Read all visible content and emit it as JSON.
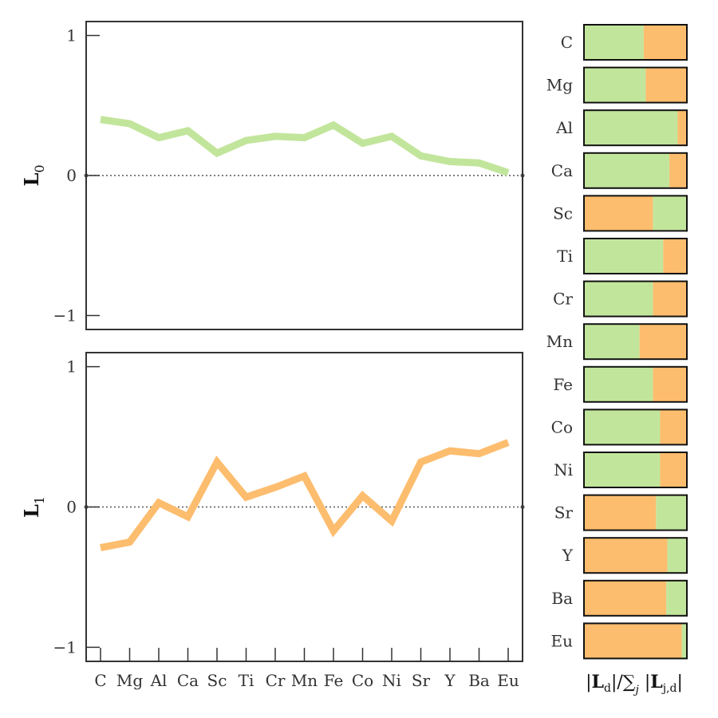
{
  "chart_data": [
    {
      "type": "line",
      "panel": "top",
      "ylabel_main": "L",
      "ylabel_sub": "0",
      "ylim": [
        -1.1,
        1.1
      ],
      "yticks": [
        1,
        0,
        -1
      ],
      "ytick_labels": [
        "1",
        "0",
        "−1"
      ],
      "categories": [
        "C",
        "Mg",
        "Al",
        "Ca",
        "Sc",
        "Ti",
        "Cr",
        "Mn",
        "Fe",
        "Co",
        "Ni",
        "Sr",
        "Y",
        "Ba",
        "Eu"
      ],
      "series": [
        {
          "color": "#c2e59c",
          "values": [
            0.4,
            0.37,
            0.27,
            0.32,
            0.16,
            0.25,
            0.28,
            0.27,
            0.36,
            0.23,
            0.28,
            0.14,
            0.1,
            0.09,
            0.02
          ]
        }
      ],
      "reference_line": 0,
      "show_xtick_labels": false
    },
    {
      "type": "line",
      "panel": "bottom",
      "ylabel_main": "L",
      "ylabel_sub": "1",
      "ylim": [
        -1.1,
        1.1
      ],
      "yticks": [
        1,
        0,
        -1
      ],
      "ytick_labels": [
        "1",
        "0",
        "−1"
      ],
      "categories": [
        "C",
        "Mg",
        "Al",
        "Ca",
        "Sc",
        "Ti",
        "Cr",
        "Mn",
        "Fe",
        "Co",
        "Ni",
        "Sr",
        "Y",
        "Ba",
        "Eu"
      ],
      "series": [
        {
          "color": "#fdbd6e",
          "values": [
            -0.29,
            -0.25,
            0.03,
            -0.07,
            0.32,
            0.07,
            0.14,
            0.22,
            -0.17,
            0.08,
            -0.1,
            0.32,
            0.4,
            0.38,
            0.46
          ]
        }
      ],
      "reference_line": 0,
      "show_xtick_labels": true
    },
    {
      "type": "bar",
      "orientation": "horizontal-stacked",
      "xlabel": "|L_d|/∑_j |L_j,d|",
      "categories": [
        "C",
        "Mg",
        "Al",
        "Ca",
        "Sc",
        "Ti",
        "Cr",
        "Mn",
        "Fe",
        "Co",
        "Ni",
        "Sr",
        "Y",
        "Ba",
        "Eu"
      ],
      "colors": {
        "L0": "#c2e59c",
        "L1": "#fdbd6e"
      },
      "series": [
        {
          "key": "L0",
          "values": [
            0.58,
            0.6,
            0.91,
            0.83,
            0.33,
            0.77,
            0.67,
            0.54,
            0.67,
            0.74,
            0.74,
            0.3,
            0.19,
            0.2,
            0.05
          ]
        },
        {
          "key": "L1",
          "values": [
            0.42,
            0.4,
            0.09,
            0.17,
            0.67,
            0.23,
            0.33,
            0.46,
            0.33,
            0.26,
            0.26,
            0.7,
            0.81,
            0.8,
            0.95
          ]
        }
      ],
      "first_segment": [
        "L0",
        "L0",
        "L0",
        "L0",
        "L1",
        "L0",
        "L0",
        "L0",
        "L0",
        "L0",
        "L0",
        "L1",
        "L1",
        "L1",
        "L1"
      ]
    }
  ]
}
